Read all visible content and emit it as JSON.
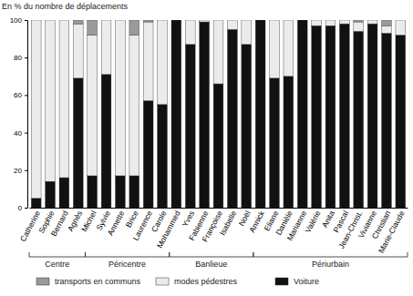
{
  "chart_data": {
    "type": "bar",
    "stacked": true,
    "y_label": "En % du nombre de déplacements",
    "categories": [
      "Catherine",
      "Sophie",
      "Bernard",
      "Agnès",
      "Michel",
      "Sylvie",
      "Annette",
      "Brice",
      "Laurence",
      "Carole",
      "Mohammed",
      "Yves",
      "Fabienne",
      "Françoise",
      "Isabelle",
      "Noël",
      "Annick",
      "Eliane",
      "Danièle",
      "Marianne",
      "Valérie",
      "Anita",
      "Pascal",
      "Jean-Christ.",
      "Vivianne",
      "Christian",
      "Marie-Claude"
    ],
    "series": [
      {
        "name": "Voiture",
        "color": "#111111",
        "values": [
          5,
          14,
          16,
          69,
          17,
          71,
          17,
          17,
          57,
          55,
          100,
          87,
          99,
          66,
          95,
          87,
          100,
          69,
          70,
          100,
          97,
          97,
          98,
          94,
          98,
          93,
          92
        ]
      },
      {
        "name": "modes pédestres",
        "color": "#ebebeb",
        "values": [
          95,
          86,
          84,
          29,
          75,
          29,
          83,
          75,
          42,
          45,
          0,
          13,
          1,
          34,
          5,
          13,
          0,
          31,
          30,
          0,
          3,
          3,
          2,
          5,
          2,
          4,
          8
        ]
      },
      {
        "name": "transports en communs",
        "color": "#9a9a9a",
        "values": [
          0,
          0,
          0,
          2,
          8,
          0,
          0,
          8,
          1,
          0,
          0,
          0,
          0,
          0,
          0,
          0,
          0,
          0,
          0,
          0,
          0,
          0,
          0,
          1,
          0,
          3,
          0
        ]
      }
    ],
    "groups": [
      {
        "label": "Centre",
        "size": 4
      },
      {
        "label": "Péricentre",
        "size": 6
      },
      {
        "label": "Banlieue",
        "size": 6
      },
      {
        "label": "Périurbain",
        "size": 11
      }
    ],
    "ylim": [
      0,
      100
    ],
    "yticks": [
      0,
      20,
      40,
      60,
      80,
      100
    ],
    "legend": "bottom"
  }
}
